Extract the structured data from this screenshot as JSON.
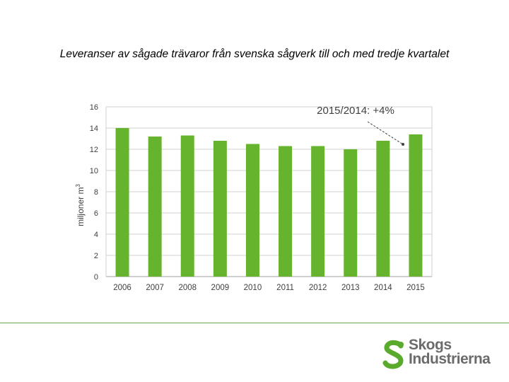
{
  "slide": {
    "title": "Leveranser av sågade trävaror från svenska sågverk till och med tredje kvartalet"
  },
  "chart_data": {
    "type": "bar",
    "categories": [
      "2006",
      "2007",
      "2008",
      "2009",
      "2010",
      "2011",
      "2012",
      "2013",
      "2014",
      "2015"
    ],
    "values": [
      14.0,
      13.2,
      13.3,
      12.8,
      12.5,
      12.3,
      12.3,
      12.0,
      12.8,
      13.4
    ],
    "ylabel": "miljoner m",
    "ylabel_superscript": "3",
    "ylim": [
      0,
      16
    ],
    "yticks": [
      0,
      2,
      4,
      6,
      8,
      10,
      12,
      14,
      16
    ],
    "grid": true,
    "bar_color": "#66b32e",
    "annotation": {
      "text": "2015/2014: +4%",
      "target_category": "2015"
    }
  },
  "logo": {
    "line1": "Skogs",
    "line2": "Industrierna",
    "color": "#6b6b6b",
    "mark_color": "#5aaa2e"
  },
  "colors": {
    "footer_line": "#6aa84f",
    "grid": "#d0d0d0",
    "axis_text": "#404040"
  }
}
